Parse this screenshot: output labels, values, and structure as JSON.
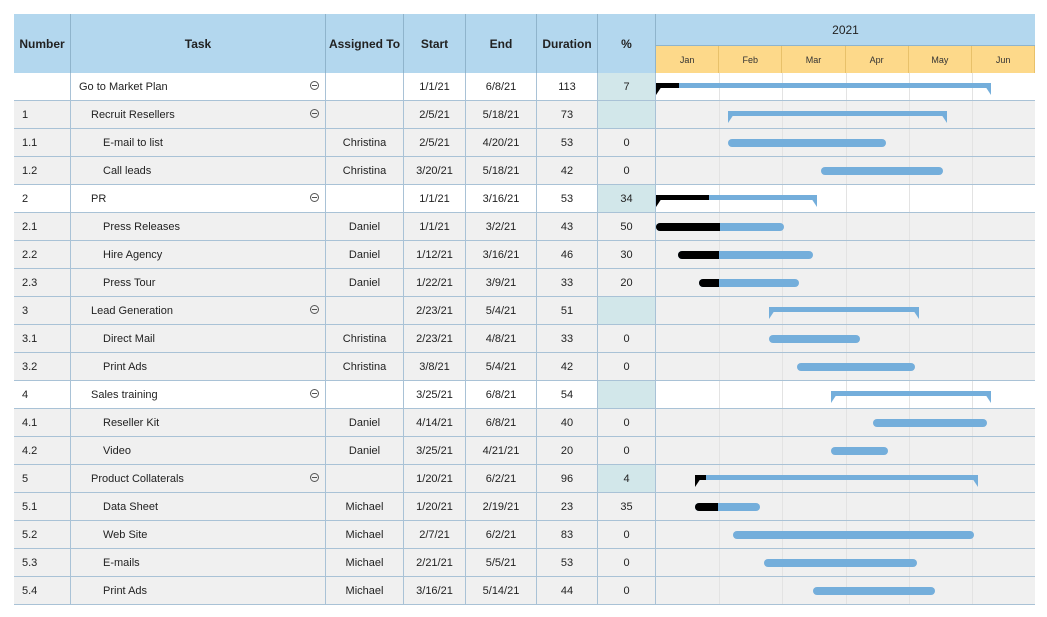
{
  "columns": {
    "number": "Number",
    "task": "Task",
    "assigned": "Assigned To",
    "start": "Start",
    "end": "End",
    "duration": "Duration",
    "pct": "%"
  },
  "year": "2021",
  "months": [
    "Jan",
    "Feb",
    "Mar",
    "Apr",
    "May",
    "Jun"
  ],
  "colors": {
    "header": "#b3d7ee",
    "month_header": "#fdd98a",
    "bar": "#74aedb",
    "progress": "#000000",
    "pct_highlight": "#d2e7ea"
  },
  "rows": [
    {
      "num": "",
      "task": "Go to Market Plan",
      "level": 0,
      "summary": true,
      "assigned": "",
      "start": "1/1/21",
      "end": "6/8/21",
      "duration": "113",
      "pct": "7"
    },
    {
      "num": "1",
      "task": "Recruit Resellers",
      "level": 1,
      "summary": true,
      "assigned": "",
      "start": "2/5/21",
      "end": "5/18/21",
      "duration": "73",
      "pct": ""
    },
    {
      "num": "1.1",
      "task": "E-mail to list",
      "level": 2,
      "summary": false,
      "assigned": "Christina",
      "start": "2/5/21",
      "end": "4/20/21",
      "duration": "53",
      "pct": "0"
    },
    {
      "num": "1.2",
      "task": "Call leads",
      "level": 2,
      "summary": false,
      "assigned": "Christina",
      "start": "3/20/21",
      "end": "5/18/21",
      "duration": "42",
      "pct": "0"
    },
    {
      "num": "2",
      "task": "PR",
      "level": 1,
      "summary": true,
      "assigned": "",
      "start": "1/1/21",
      "end": "3/16/21",
      "duration": "53",
      "pct": "34"
    },
    {
      "num": "2.1",
      "task": "Press Releases",
      "level": 2,
      "summary": false,
      "assigned": "Daniel",
      "start": "1/1/21",
      "end": "3/2/21",
      "duration": "43",
      "pct": "50"
    },
    {
      "num": "2.2",
      "task": "Hire Agency",
      "level": 2,
      "summary": false,
      "assigned": "Daniel",
      "start": "1/12/21",
      "end": "3/16/21",
      "duration": "46",
      "pct": "30"
    },
    {
      "num": "2.3",
      "task": "Press Tour",
      "level": 2,
      "summary": false,
      "assigned": "Daniel",
      "start": "1/22/21",
      "end": "3/9/21",
      "duration": "33",
      "pct": "20"
    },
    {
      "num": "3",
      "task": "Lead Generation",
      "level": 1,
      "summary": true,
      "assigned": "",
      "start": "2/23/21",
      "end": "5/4/21",
      "duration": "51",
      "pct": ""
    },
    {
      "num": "3.1",
      "task": "Direct Mail",
      "level": 2,
      "summary": false,
      "assigned": "Christina",
      "start": "2/23/21",
      "end": "4/8/21",
      "duration": "33",
      "pct": "0"
    },
    {
      "num": "3.2",
      "task": "Print Ads",
      "level": 2,
      "summary": false,
      "assigned": "Christina",
      "start": "3/8/21",
      "end": "5/4/21",
      "duration": "42",
      "pct": "0"
    },
    {
      "num": "4",
      "task": "Sales training",
      "level": 1,
      "summary": true,
      "assigned": "",
      "start": "3/25/21",
      "end": "6/8/21",
      "duration": "54",
      "pct": ""
    },
    {
      "num": "4.1",
      "task": "Reseller Kit",
      "level": 2,
      "summary": false,
      "assigned": "Daniel",
      "start": "4/14/21",
      "end": "6/8/21",
      "duration": "40",
      "pct": "0"
    },
    {
      "num": "4.2",
      "task": "Video",
      "level": 2,
      "summary": false,
      "assigned": "Daniel",
      "start": "3/25/21",
      "end": "4/21/21",
      "duration": "20",
      "pct": "0"
    },
    {
      "num": "5",
      "task": "Product Collaterals",
      "level": 1,
      "summary": true,
      "assigned": "",
      "start": "1/20/21",
      "end": "6/2/21",
      "duration": "96",
      "pct": "4"
    },
    {
      "num": "5.1",
      "task": "Data Sheet",
      "level": 2,
      "summary": false,
      "assigned": "Michael",
      "start": "1/20/21",
      "end": "2/19/21",
      "duration": "23",
      "pct": "35"
    },
    {
      "num": "5.2",
      "task": "Web Site",
      "level": 2,
      "summary": false,
      "assigned": "Michael",
      "start": "2/7/21",
      "end": "6/2/21",
      "duration": "83",
      "pct": "0"
    },
    {
      "num": "5.3",
      "task": "E-mails",
      "level": 2,
      "summary": false,
      "assigned": "Michael",
      "start": "2/21/21",
      "end": "5/5/21",
      "duration": "53",
      "pct": "0"
    },
    {
      "num": "5.4",
      "task": "Print Ads",
      "level": 2,
      "summary": false,
      "assigned": "Michael",
      "start": "3/16/21",
      "end": "5/14/21",
      "duration": "44",
      "pct": "0"
    }
  ]
}
